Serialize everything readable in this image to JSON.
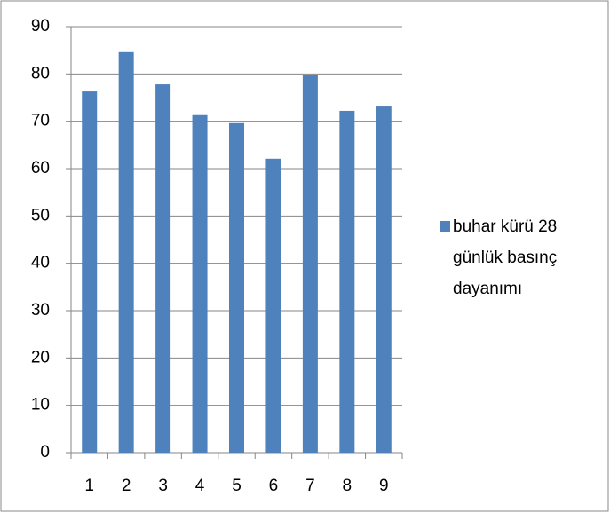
{
  "chart_data": {
    "type": "bar",
    "categories": [
      "1",
      "2",
      "3",
      "4",
      "5",
      "6",
      "7",
      "8",
      "9"
    ],
    "series": [
      {
        "name": "buhar kürü 28 günlük basınç dayanımı",
        "color": "#4f81bd",
        "values": [
          76.3,
          84.6,
          77.8,
          71.3,
          69.6,
          62.1,
          79.7,
          72.2,
          73.3
        ]
      }
    ],
    "ylim": [
      0,
      90
    ],
    "yticks": [
      0,
      10,
      20,
      30,
      40,
      50,
      60,
      70,
      80,
      90
    ],
    "grid": true,
    "legend": "right"
  }
}
